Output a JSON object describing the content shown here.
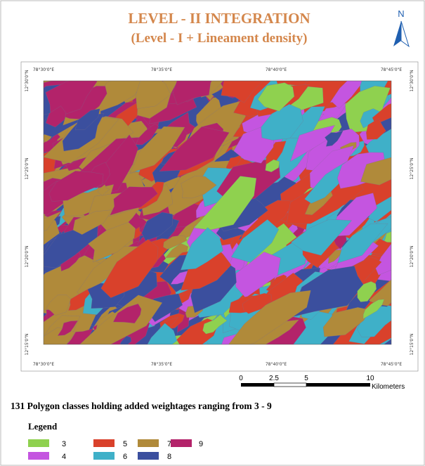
{
  "map": {
    "title": "LEVEL - II  INTEGRATION",
    "subtitle": "(Level - I + Lineament density)",
    "north": "N",
    "top_coords": [
      "78°30'0\"E",
      "78°35'0\"E",
      "78°40'0\"E",
      "78°45'0\"E"
    ],
    "side_coords": [
      "12°30'0\"N",
      "12°25'0\"N",
      "12°20'0\"N",
      "12°15'0\"N"
    ],
    "scale_labels": [
      "0",
      "2.5",
      "5",
      "10"
    ],
    "scale_unit": "Kilometers",
    "caption": "131 Polygon classes holding added weightages ranging from 3 - 9",
    "legend_title": "Legend",
    "legend": [
      {
        "label": "3",
        "color": "#8fd14f"
      },
      {
        "label": "5",
        "color": "#d9412b"
      },
      {
        "label": "7",
        "color": "#b08a3a"
      },
      {
        "label": "9",
        "color": "#b3236a"
      },
      {
        "label": "4",
        "color": "#c455e0"
      },
      {
        "label": "6",
        "color": "#3fb0c8"
      },
      {
        "label": "8",
        "color": "#3b4f9e"
      }
    ]
  }
}
